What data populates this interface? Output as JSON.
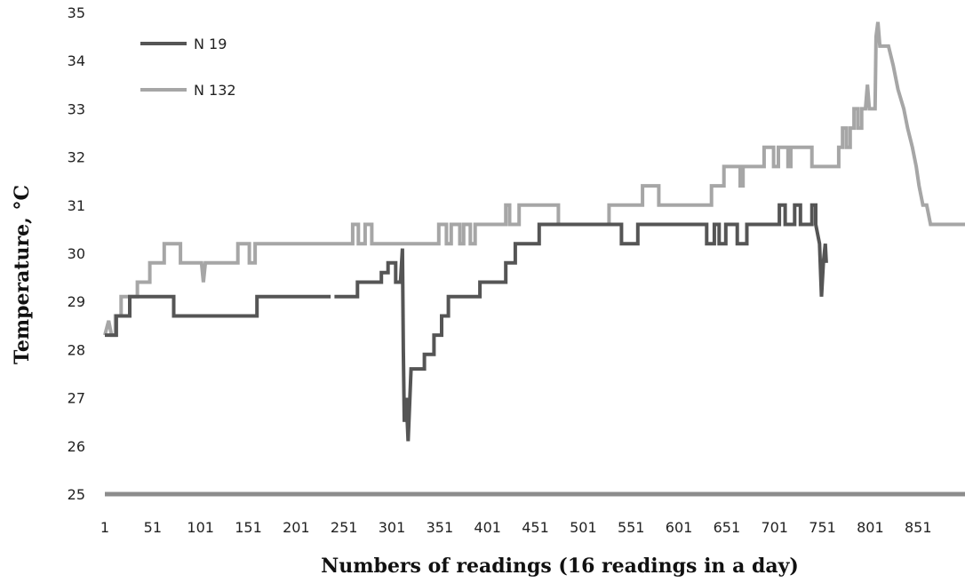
{
  "chart_data": {
    "type": "line",
    "title": "",
    "xlabel": "Numbers of readings (16 readings in a day)",
    "ylabel": "Temperature, °C",
    "xlim": [
      1,
      900
    ],
    "ylim": [
      25,
      35
    ],
    "x_ticks": [
      1,
      51,
      101,
      151,
      201,
      251,
      301,
      351,
      401,
      451,
      501,
      551,
      601,
      651,
      701,
      751,
      801,
      851
    ],
    "y_ticks": [
      25,
      26,
      27,
      28,
      29,
      30,
      31,
      32,
      33,
      34,
      35
    ],
    "grid": false,
    "legend_position": "top-left",
    "series": [
      {
        "name": "N 19",
        "color": "#555555",
        "points": [
          [
            1,
            28.3
          ],
          [
            13,
            28.3
          ],
          [
            13,
            28.7
          ],
          [
            27,
            28.7
          ],
          [
            27,
            29.1
          ],
          [
            73,
            29.1
          ],
          [
            73,
            28.7
          ],
          [
            160,
            28.7
          ],
          [
            160,
            29.1
          ],
          [
            237,
            29.1
          ],
          [
            237,
            null
          ],
          [
            241,
            29.1
          ],
          [
            265,
            29.1
          ],
          [
            265,
            29.4
          ],
          [
            290,
            29.4
          ],
          [
            290,
            29.6
          ],
          [
            297,
            29.6
          ],
          [
            297,
            29.8
          ],
          [
            305,
            29.8
          ],
          [
            305,
            29.4
          ],
          [
            310,
            29.4
          ],
          [
            312,
            30.1
          ],
          [
            313,
            28.0
          ],
          [
            314,
            26.5
          ],
          [
            316,
            27.0
          ],
          [
            318,
            26.1
          ],
          [
            321,
            27.6
          ],
          [
            335,
            27.6
          ],
          [
            335,
            27.9
          ],
          [
            345,
            27.9
          ],
          [
            345,
            28.3
          ],
          [
            353,
            28.3
          ],
          [
            353,
            28.7
          ],
          [
            360,
            28.7
          ],
          [
            360,
            29.1
          ],
          [
            393,
            29.1
          ],
          [
            393,
            29.4
          ],
          [
            420,
            29.4
          ],
          [
            420,
            29.8
          ],
          [
            430,
            29.8
          ],
          [
            430,
            30.2
          ],
          [
            455,
            30.2
          ],
          [
            455,
            30.6
          ],
          [
            541,
            30.6
          ],
          [
            541,
            30.2
          ],
          [
            558,
            30.2
          ],
          [
            558,
            30.6
          ],
          [
            630,
            30.6
          ],
          [
            630,
            30.2
          ],
          [
            638,
            30.2
          ],
          [
            638,
            30.6
          ],
          [
            643,
            30.6
          ],
          [
            643,
            30.2
          ],
          [
            650,
            30.2
          ],
          [
            650,
            30.6
          ],
          [
            662,
            30.6
          ],
          [
            662,
            30.2
          ],
          [
            672,
            30.2
          ],
          [
            672,
            30.6
          ],
          [
            706,
            30.6
          ],
          [
            706,
            31.0
          ],
          [
            712,
            31.0
          ],
          [
            712,
            30.6
          ],
          [
            722,
            30.6
          ],
          [
            722,
            31.0
          ],
          [
            728,
            31.0
          ],
          [
            728,
            30.6
          ],
          [
            740,
            30.6
          ],
          [
            740,
            31.0
          ],
          [
            744,
            31.0
          ],
          [
            744,
            30.6
          ],
          [
            748,
            30.2
          ],
          [
            750,
            29.1
          ],
          [
            752,
            29.8
          ],
          [
            754,
            30.2
          ],
          [
            755,
            29.8
          ]
        ]
      },
      {
        "name": "N 132",
        "color": "#a6a6a6",
        "points": [
          [
            1,
            28.3
          ],
          [
            5,
            28.6
          ],
          [
            8,
            28.3
          ],
          [
            12,
            28.3
          ],
          [
            12,
            28.7
          ],
          [
            18,
            28.7
          ],
          [
            18,
            29.1
          ],
          [
            35,
            29.1
          ],
          [
            35,
            29.4
          ],
          [
            48,
            29.4
          ],
          [
            48,
            29.8
          ],
          [
            63,
            29.8
          ],
          [
            63,
            30.2
          ],
          [
            80,
            30.2
          ],
          [
            80,
            29.8
          ],
          [
            102,
            29.8
          ],
          [
            104,
            29.4
          ],
          [
            106,
            29.8
          ],
          [
            140,
            29.8
          ],
          [
            140,
            30.2
          ],
          [
            152,
            30.2
          ],
          [
            152,
            29.8
          ],
          [
            158,
            29.8
          ],
          [
            158,
            30.2
          ],
          [
            260,
            30.2
          ],
          [
            260,
            30.6
          ],
          [
            266,
            30.6
          ],
          [
            266,
            30.2
          ],
          [
            273,
            30.2
          ],
          [
            273,
            30.6
          ],
          [
            280,
            30.6
          ],
          [
            280,
            30.2
          ],
          [
            350,
            30.2
          ],
          [
            350,
            30.6
          ],
          [
            358,
            30.6
          ],
          [
            358,
            30.2
          ],
          [
            363,
            30.2
          ],
          [
            363,
            30.6
          ],
          [
            372,
            30.6
          ],
          [
            372,
            30.2
          ],
          [
            376,
            30.2
          ],
          [
            376,
            30.6
          ],
          [
            383,
            30.6
          ],
          [
            383,
            30.2
          ],
          [
            388,
            30.2
          ],
          [
            388,
            30.6
          ],
          [
            420,
            30.6
          ],
          [
            420,
            31.0
          ],
          [
            424,
            31.0
          ],
          [
            424,
            30.6
          ],
          [
            434,
            30.6
          ],
          [
            434,
            31.0
          ],
          [
            475,
            31.0
          ],
          [
            475,
            30.6
          ],
          [
            528,
            30.6
          ],
          [
            528,
            31.0
          ],
          [
            563,
            31.0
          ],
          [
            563,
            31.4
          ],
          [
            580,
            31.4
          ],
          [
            580,
            31.0
          ],
          [
            635,
            31.0
          ],
          [
            635,
            31.4
          ],
          [
            648,
            31.4
          ],
          [
            648,
            31.8
          ],
          [
            665,
            31.8
          ],
          [
            665,
            31.4
          ],
          [
            668,
            31.4
          ],
          [
            668,
            31.8
          ],
          [
            690,
            31.8
          ],
          [
            690,
            32.2
          ],
          [
            700,
            32.2
          ],
          [
            700,
            31.8
          ],
          [
            705,
            31.8
          ],
          [
            705,
            32.2
          ],
          [
            715,
            32.2
          ],
          [
            715,
            31.8
          ],
          [
            718,
            31.8
          ],
          [
            718,
            32.2
          ],
          [
            740,
            32.2
          ],
          [
            740,
            31.8
          ],
          [
            768,
            31.8
          ],
          [
            768,
            32.2
          ],
          [
            772,
            32.2
          ],
          [
            772,
            32.6
          ],
          [
            776,
            32.6
          ],
          [
            776,
            32.2
          ],
          [
            780,
            32.2
          ],
          [
            780,
            32.6
          ],
          [
            784,
            32.6
          ],
          [
            784,
            33.0
          ],
          [
            788,
            33.0
          ],
          [
            788,
            32.6
          ],
          [
            792,
            32.6
          ],
          [
            792,
            33.0
          ],
          [
            796,
            33.0
          ],
          [
            798,
            33.5
          ],
          [
            800,
            33.0
          ],
          [
            806,
            33.0
          ],
          [
            807,
            34.5
          ],
          [
            809,
            34.8
          ],
          [
            811,
            34.3
          ],
          [
            820,
            34.3
          ],
          [
            825,
            33.9
          ],
          [
            830,
            33.4
          ],
          [
            836,
            33.0
          ],
          [
            840,
            32.6
          ],
          [
            845,
            32.2
          ],
          [
            849,
            31.8
          ],
          [
            852,
            31.4
          ],
          [
            856,
            31.0
          ],
          [
            860,
            31.0
          ],
          [
            864,
            30.6
          ],
          [
            900,
            30.6
          ]
        ]
      }
    ]
  }
}
